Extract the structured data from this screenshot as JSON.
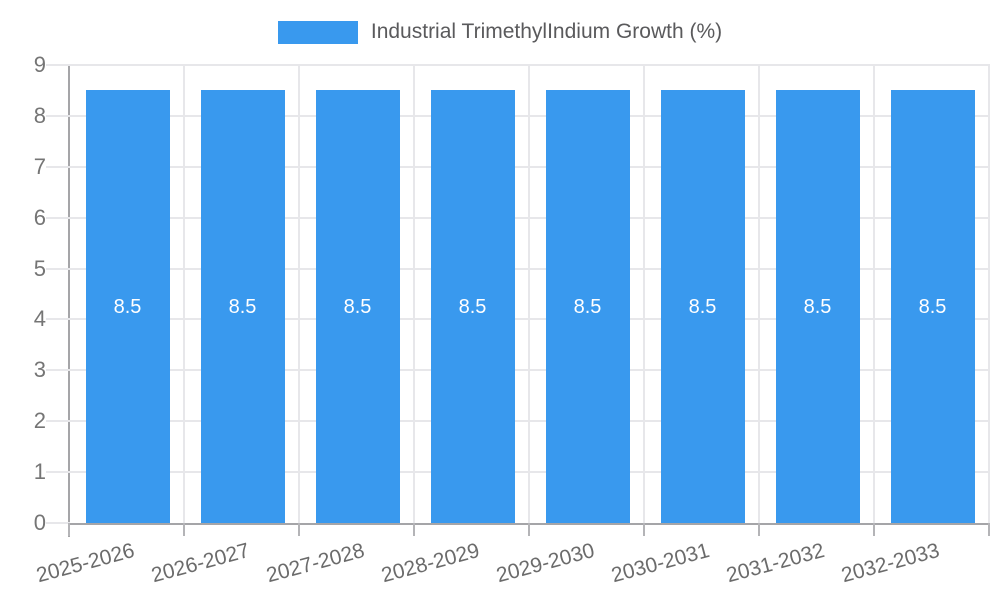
{
  "chart_data": {
    "type": "bar",
    "title": "Industrial TrimethylIndium Growth (%)",
    "categories": [
      "2025-2026",
      "2026-2027",
      "2027-2028",
      "2028-2029",
      "2029-2030",
      "2030-2031",
      "2031-2032",
      "2032-2033"
    ],
    "values": [
      8.5,
      8.5,
      8.5,
      8.5,
      8.5,
      8.5,
      8.5,
      8.5
    ],
    "bar_labels": [
      "8.5",
      "8.5",
      "8.5",
      "8.5",
      "8.5",
      "8.5",
      "8.5",
      "8.5"
    ],
    "xlabel": "",
    "ylabel": "",
    "ylim": [
      0,
      9
    ],
    "y_ticks": [
      0,
      1,
      2,
      3,
      4,
      5,
      6,
      7,
      8,
      9
    ],
    "grid": true,
    "legend_position": "top-center"
  },
  "colors": {
    "bar": "#3999ee",
    "bar_label": "#ffffff",
    "gridline": "#e7e7ea",
    "axis": "#a5a5a8",
    "y_tick_label": "#757575",
    "x_tick_label": "#6b6b6b",
    "legend_text": "#5a5a5c",
    "background": "#ffffff"
  }
}
